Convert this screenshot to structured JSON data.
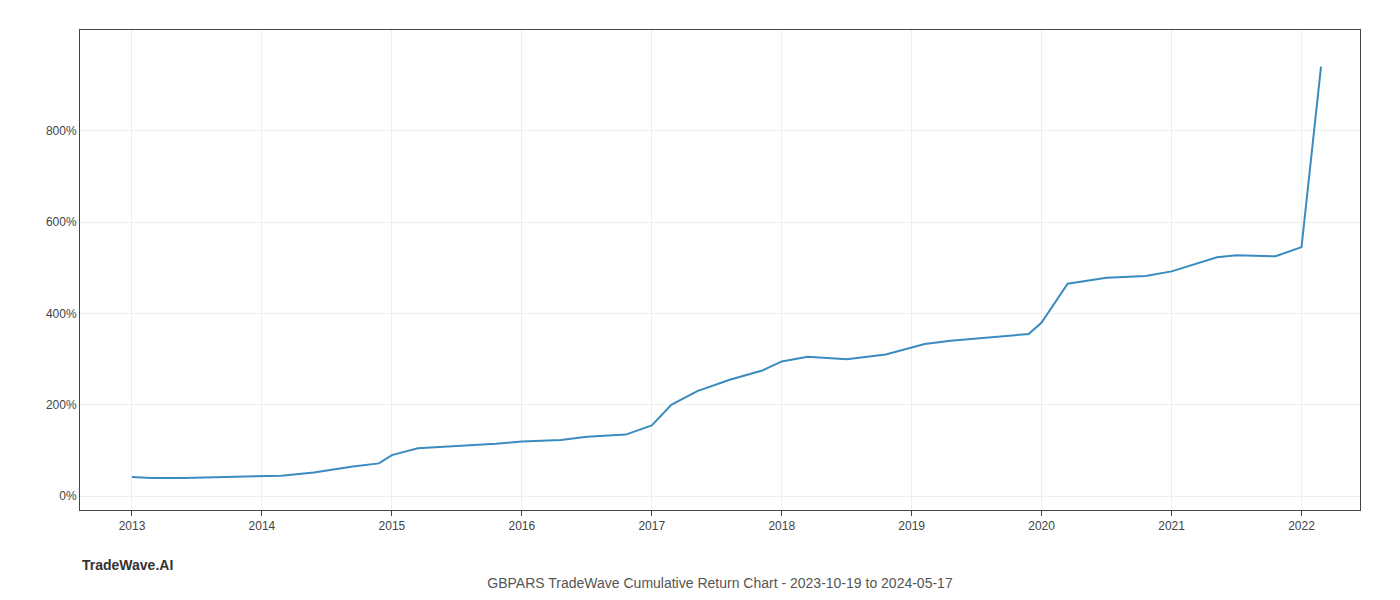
{
  "chart_data": {
    "type": "line",
    "title": "GBPARS TradeWave Cumulative Return Chart - 2023-10-19 to 2024-05-17",
    "annotations": [
      "TradeWave.AI"
    ],
    "x": [
      2013.0,
      2013.15,
      2013.4,
      2013.7,
      2013.9,
      2014.0,
      2014.15,
      2014.4,
      2014.7,
      2014.9,
      2015.0,
      2015.2,
      2015.5,
      2015.8,
      2016.0,
      2016.3,
      2016.5,
      2016.8,
      2017.0,
      2017.15,
      2017.35,
      2017.6,
      2017.85,
      2018.0,
      2018.2,
      2018.5,
      2018.8,
      2019.0,
      2019.1,
      2019.3,
      2019.6,
      2019.9,
      2020.0,
      2020.2,
      2020.5,
      2020.8,
      2021.0,
      2021.2,
      2021.35,
      2021.5,
      2021.8,
      2022.0,
      2022.15
    ],
    "values": [
      42,
      40,
      40,
      42,
      42,
      43,
      45,
      52,
      65,
      72,
      90,
      105,
      110,
      115,
      120,
      123,
      130,
      135,
      155,
      200,
      230,
      255,
      275,
      295,
      305,
      300,
      310,
      325,
      333,
      340,
      348,
      355,
      380,
      465,
      478,
      482,
      492,
      510,
      523,
      527,
      525,
      545,
      940
    ],
    "color": "#3a8bbf",
    "xlim": [
      2012.6,
      2022.45
    ],
    "xticks": [
      2013,
      2014,
      2015,
      2016,
      2017,
      2018,
      2019,
      2020,
      2021,
      2022
    ],
    "ylim": [
      -30,
      1020
    ],
    "yticks": [
      {
        "value": 0,
        "label": "0%"
      },
      {
        "value": 200,
        "label": "200%"
      },
      {
        "value": 400,
        "label": "400%"
      },
      {
        "value": 600,
        "label": "600%"
      },
      {
        "value": 800,
        "label": "800%"
      }
    ],
    "grid": true
  }
}
